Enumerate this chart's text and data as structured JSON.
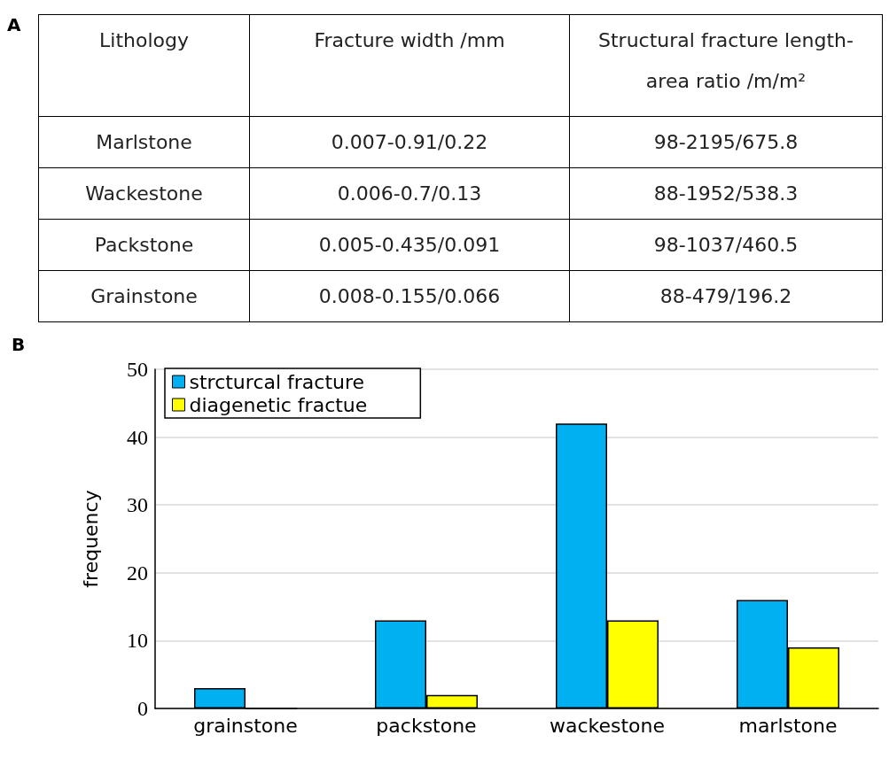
{
  "chart_data": [
    {
      "type": "other",
      "title": "A",
      "categories": [
        "Lithology",
        "Fracture width /mm",
        "Structural fracture length-area ratio /m/m²"
      ],
      "y_categories": [
        "Marlstone",
        "Wackestone",
        "Packstone",
        "Grainstone"
      ],
      "cell_labels": [
        [
          "0.007-0.91/0.22",
          "98-2195/675.8"
        ],
        [
          "0.006-0.7/0.13",
          "88-1952/538.3"
        ],
        [
          "0.005-0.435/0.091",
          "98-1037/460.5"
        ],
        [
          "0.008-0.155/0.066",
          "88-479/196.2"
        ]
      ]
    },
    {
      "type": "bar",
      "title": "B",
      "ylabel": "frequency",
      "categories": [
        "grainstone",
        "packstone",
        "wackestone",
        "marlstone"
      ],
      "series": [
        {
          "name": "strcturcal fracture",
          "color": "#00b0f0",
          "values": [
            3,
            13,
            42,
            16
          ]
        },
        {
          "name": "diagenetic fractue",
          "color": "#ffff00",
          "values": [
            0,
            2,
            13,
            9
          ]
        }
      ],
      "ylim": [
        0,
        50
      ],
      "yticks": [
        0,
        10,
        20,
        30,
        40,
        50
      ],
      "grid": "y",
      "legend": "top left"
    }
  ]
}
